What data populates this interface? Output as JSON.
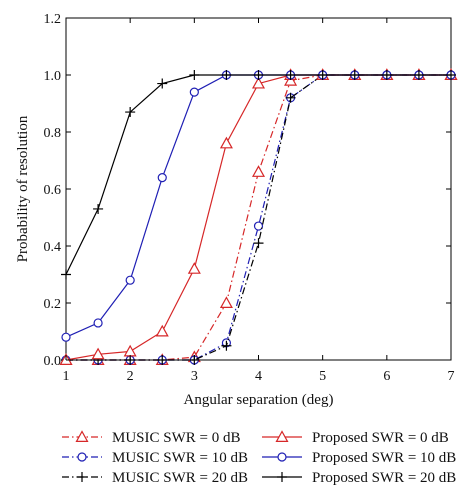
{
  "chart_data": {
    "type": "line",
    "xlabel": "Angular separation (deg)",
    "ylabel": "Probability of resolution",
    "xlim": [
      1,
      7
    ],
    "ylim": [
      0,
      1.2
    ],
    "xticks": [
      "1",
      "2",
      "3",
      "4",
      "5",
      "6",
      "7"
    ],
    "yticks": [
      "0.0",
      "0.2",
      "0.4",
      "0.6",
      "0.8",
      "1.0",
      "1.2"
    ],
    "grid": false,
    "legend_position": "bottom",
    "x": [
      1,
      1.5,
      2,
      2.5,
      3,
      3.5,
      4,
      4.5,
      5,
      5.5,
      6,
      6.5,
      7
    ],
    "series": [
      {
        "name": "MUSIC SWR = 0 dB",
        "color": "#d62728",
        "linestyle": "dashdot",
        "marker": "triangle",
        "values": [
          0,
          0,
          0,
          0,
          0.01,
          0.2,
          0.66,
          0.98,
          1,
          1,
          1,
          1,
          1
        ]
      },
      {
        "name": "MUSIC SWR = 10 dB",
        "color": "#1f1fb4",
        "linestyle": "dashdot",
        "marker": "circle",
        "values": [
          0,
          0,
          0,
          0,
          0,
          0.06,
          0.47,
          0.92,
          1,
          1,
          1,
          1,
          1
        ]
      },
      {
        "name": "MUSIC SWR = 20 dB",
        "color": "#000000",
        "linestyle": "dashdot",
        "marker": "plus",
        "values": [
          0,
          0,
          0,
          0,
          0,
          0.05,
          0.41,
          0.92,
          1,
          1,
          1,
          1,
          1
        ]
      },
      {
        "name": "Proposed SWR = 0 dB",
        "color": "#d62728",
        "linestyle": "solid",
        "marker": "triangle",
        "values": [
          0,
          0.02,
          0.03,
          0.1,
          0.32,
          0.76,
          0.97,
          1,
          1,
          1,
          1,
          1,
          1
        ]
      },
      {
        "name": "Proposed SWR = 10 dB",
        "color": "#1f1fb4",
        "linestyle": "solid",
        "marker": "circle",
        "values": [
          0.08,
          0.13,
          0.28,
          0.64,
          0.94,
          1,
          1,
          1,
          1,
          1,
          1,
          1,
          1
        ]
      },
      {
        "name": "Proposed SWR = 20 dB",
        "color": "#000000",
        "linestyle": "solid",
        "marker": "plus",
        "values": [
          0.3,
          0.53,
          0.87,
          0.97,
          1,
          1,
          1,
          1,
          1,
          1,
          1,
          1,
          1
        ]
      }
    ]
  }
}
